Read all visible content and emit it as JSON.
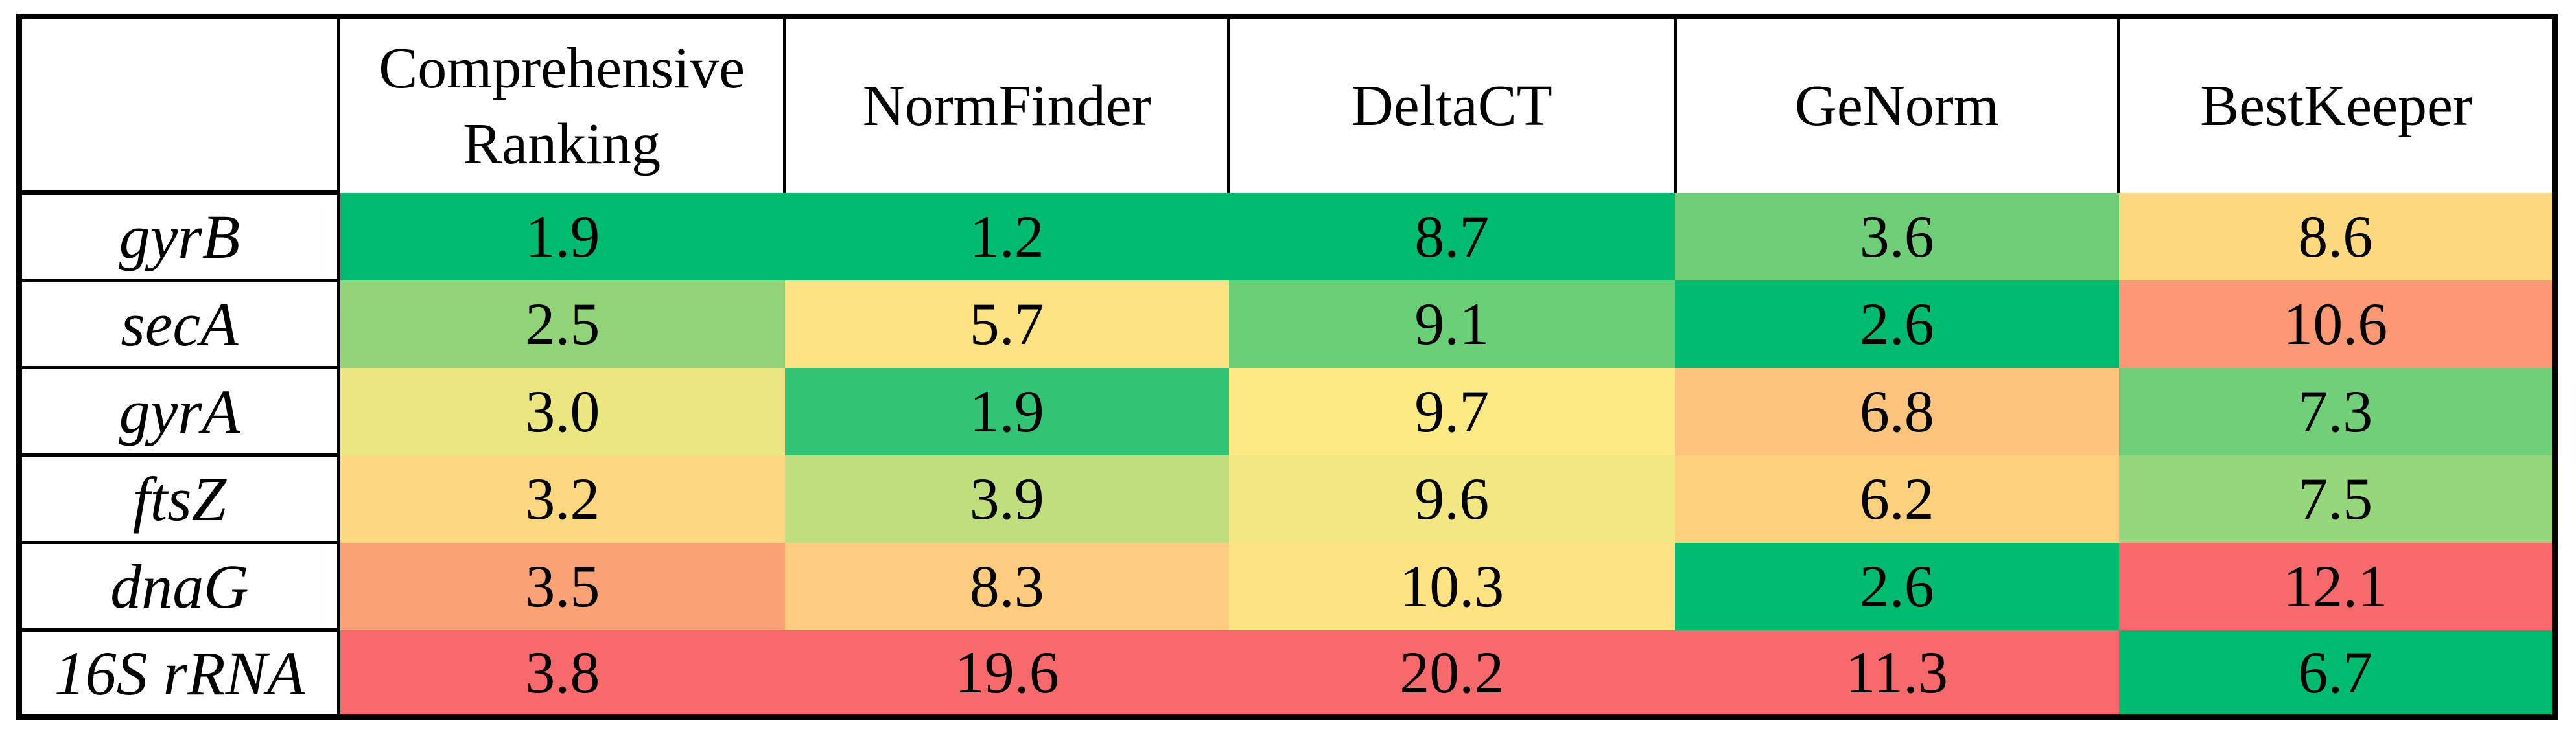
{
  "table": {
    "corner_label": "",
    "border_color": "#000000",
    "background": "#FFFFFF"
  },
  "chart_data": {
    "type": "heatmap",
    "columns": [
      "Comprehensive Ranking",
      "NormFinder",
      "DeltaCT",
      "GeNorm",
      "BestKeeper"
    ],
    "rows": [
      "gyrB",
      "secA",
      "gyrA",
      "ftsZ",
      "dnaG",
      "16S rRNA"
    ],
    "values": [
      [
        1.9,
        1.2,
        8.7,
        3.6,
        8.6
      ],
      [
        2.5,
        5.7,
        9.1,
        2.6,
        10.6
      ],
      [
        3.0,
        1.9,
        9.7,
        6.8,
        7.3
      ],
      [
        3.2,
        3.9,
        9.6,
        6.2,
        7.5
      ],
      [
        3.5,
        8.3,
        10.3,
        2.6,
        12.1
      ],
      [
        3.8,
        19.6,
        20.2,
        11.3,
        6.7
      ]
    ],
    "display": [
      [
        "1.9",
        "1.2",
        "8.7",
        "3.6",
        "8.6"
      ],
      [
        "2.5",
        "5.7",
        "9.1",
        "2.6",
        "10.6"
      ],
      [
        "3.0",
        "1.9",
        "9.7",
        "6.8",
        "7.3"
      ],
      [
        "3.2",
        "3.9",
        "9.6",
        "6.2",
        "7.5"
      ],
      [
        "3.5",
        "8.3",
        "10.3",
        "2.6",
        "12.1"
      ],
      [
        "3.8",
        "19.6",
        "20.2",
        "11.3",
        "6.7"
      ]
    ],
    "cell_colors": [
      [
        "#00BA70",
        "#00BA70",
        "#00BA70",
        "#6FCF79",
        "#FED980"
      ],
      [
        "#93D47A",
        "#FEE382",
        "#6BCF78",
        "#00BA70",
        "#FB9974"
      ],
      [
        "#EAE782",
        "#32C374",
        "#FEEA84",
        "#FDC47D",
        "#71CF79"
      ],
      [
        "#FED880",
        "#BFDF7F",
        "#F2E883",
        "#FED17F",
        "#97D77C"
      ],
      [
        "#FBA176",
        "#FDCC7E",
        "#FEE382",
        "#00BA70",
        "#F8696B"
      ],
      [
        "#F8696B",
        "#F8696B",
        "#F8696B",
        "#F8696B",
        "#00BA70"
      ]
    ],
    "color_scale": {
      "direction": "per-column",
      "min_color": "#00BA70",
      "mid_color": "#FFEB84",
      "max_color": "#F8696B",
      "note": "lowest value in each column = green, median = yellow, highest = red"
    },
    "legend_position": "none",
    "grid": "black borders around header row and gene-name column only; value cells have no gridlines"
  }
}
